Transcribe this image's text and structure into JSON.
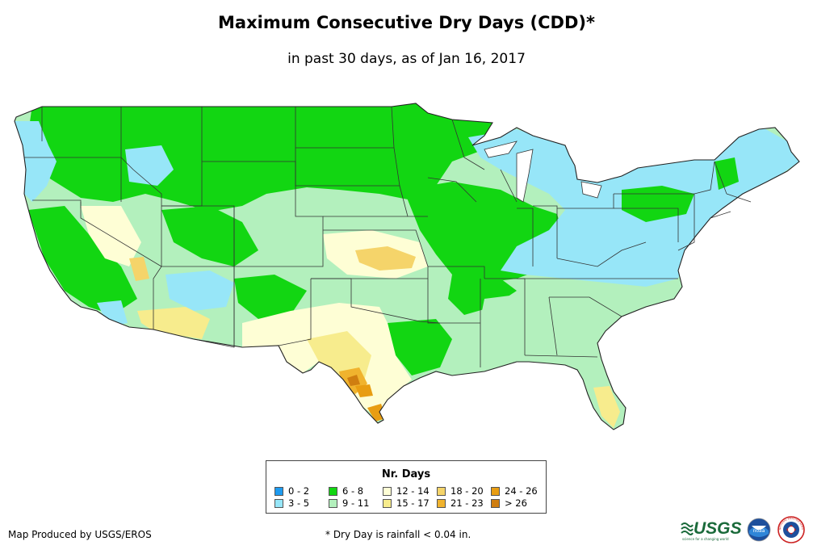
{
  "title": "Maximum Consecutive Dry Days (CDD)*",
  "subtitle": "in past 30 days, as of Jan 16, 2017",
  "legend": {
    "title": "Nr. Days",
    "items": [
      {
        "label": "0 - 2",
        "color": "#1e9bf0"
      },
      {
        "label": "3 - 5",
        "color": "#97e6f8"
      },
      {
        "label": "6 - 8",
        "color": "#12d612"
      },
      {
        "label": "9 - 11",
        "color": "#b3f0bd"
      },
      {
        "label": "12 - 14",
        "color": "#fefed5"
      },
      {
        "label": "15 - 17",
        "color": "#f7ec8d"
      },
      {
        "label": "18 - 20",
        "color": "#f5d46a"
      },
      {
        "label": "21 - 23",
        "color": "#f0b32e"
      },
      {
        "label": "24 - 26",
        "color": "#e89d12"
      },
      {
        "label": "> 26",
        "color": "#cf7e10"
      }
    ]
  },
  "credit": "Map Produced by USGS/EROS",
  "footnote": "* Dry Day is rainfall < 0.04 in.",
  "logos": {
    "usgs": "USGS",
    "usgs_tagline": "science for a changing world",
    "noaa": "noaa",
    "nws": "NATIONAL WEATHER SERVICE"
  },
  "colors": {
    "border": "#222222",
    "state_line": "#333333"
  }
}
